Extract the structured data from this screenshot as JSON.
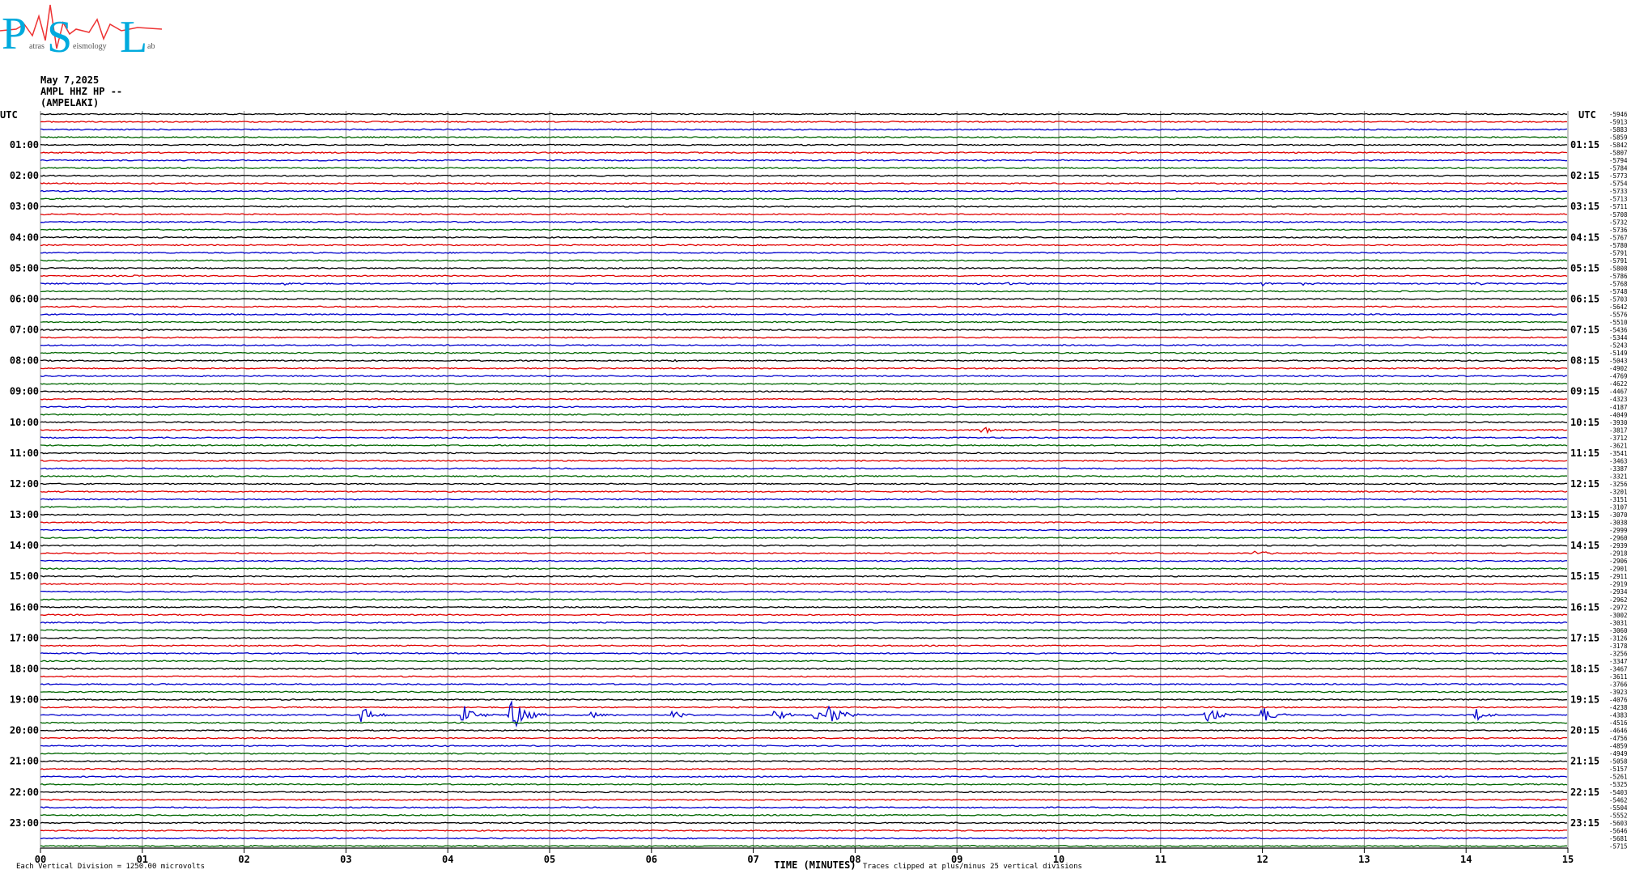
{
  "logo": {
    "letters": [
      "P",
      "S",
      "L"
    ],
    "words": [
      "atras",
      "eismology",
      "ab"
    ]
  },
  "header": {
    "date": "May 7,2025",
    "station": "AMPL HHZ HP --",
    "name": "(AMPELAKI)"
  },
  "footer": {
    "scale_note": "Each Vertical Division = 1250.00 microvolts",
    "xlabel": "TIME (MINUTES)",
    "clip_note": "Traces clipped at plus/minus 25 vertical divisions"
  },
  "colors": {
    "trace_cycle": [
      "#000000",
      "#e00000",
      "#0000cc",
      "#006600"
    ],
    "gridline": "#888888",
    "logo_text": "#00aadd",
    "logo_wave": "#ee3333"
  },
  "chart_data": {
    "type": "line",
    "title": "May 7,2025 AMPL HHZ HP -- (AMPELAKI)",
    "xlabel": "TIME (MINUTES)",
    "xlim": [
      0,
      15
    ],
    "x_ticks": [
      "00",
      "01",
      "02",
      "03",
      "04",
      "05",
      "06",
      "07",
      "08",
      "09",
      "10",
      "11",
      "12",
      "13",
      "14",
      "15"
    ],
    "left_axis_title": "UTC",
    "right_axis_title": "UTC",
    "left_labels": [
      "01:00",
      "02:00",
      "03:00",
      "04:00",
      "05:00",
      "06:00",
      "07:00",
      "08:00",
      "09:00",
      "10:00",
      "11:00",
      "12:00",
      "13:00",
      "14:00",
      "15:00",
      "16:00",
      "17:00",
      "18:00",
      "19:00",
      "20:00",
      "21:00",
      "22:00",
      "23:00"
    ],
    "right_labels": [
      "01:15",
      "02:15",
      "03:15",
      "04:15",
      "05:15",
      "06:15",
      "07:15",
      "08:15",
      "09:15",
      "10:15",
      "11:15",
      "12:15",
      "13:15",
      "14:15",
      "15:15",
      "16:15",
      "17:15",
      "18:15",
      "19:15",
      "20:15",
      "21:15",
      "22:15",
      "23:15"
    ],
    "trace_offsets": [
      "-5946",
      "-5913",
      "-5883",
      "-5859",
      "-5842",
      "-5807",
      "-5794",
      "-5784",
      "-5773",
      "-5754",
      "-5733",
      "-5713",
      "-5711",
      "-5708",
      "-5732",
      "-5736",
      "-5767",
      "-5780",
      "-5791",
      "-5791",
      "-5808",
      "-5786",
      "-5768",
      "-5748",
      "-5703",
      "-5642",
      "-5576",
      "-5510",
      "-5436",
      "-5344",
      "-5243",
      "-5149",
      "-5043",
      "-4902",
      "-4769",
      "-4622",
      "-4467",
      "-4323",
      "-4187",
      "-4049",
      "-3930",
      "-3817",
      "-3712",
      "-3621",
      "-3541",
      "-3463",
      "-3387",
      "-3321",
      "-3256",
      "-3201",
      "-3151",
      "-3107",
      "-3070",
      "-3038",
      "-2999",
      "-2960",
      "-2939",
      "-2918",
      "-2906",
      "-2901",
      "-2911",
      "-2919",
      "-2934",
      "-2962",
      "-2972",
      "-3002",
      "-3031",
      "-3060",
      "-3126",
      "-3178",
      "-3256",
      "-3347",
      "-3467",
      "-3611",
      "-3766",
      "-3923",
      "-4076",
      "-4238",
      "-4383",
      "-4516",
      "-4646",
      "-4756",
      "-4859",
      "-4949",
      "-5058",
      "-5157",
      "-5261",
      "-5325",
      "-5403",
      "-5462",
      "-5504",
      "-5552",
      "-5603",
      "-5646",
      "-5681",
      "-5715"
    ],
    "series_count": 96,
    "events": [
      {
        "trace": 21,
        "minute": 0.9,
        "amp": 0.5
      },
      {
        "trace": 22,
        "minute": 2.4,
        "amp": 0.8
      },
      {
        "trace": 22,
        "minute": 9.2,
        "amp": 0.7
      },
      {
        "trace": 22,
        "minute": 9.5,
        "amp": 0.9
      },
      {
        "trace": 22,
        "minute": 12.0,
        "amp": 1.2
      },
      {
        "trace": 22,
        "minute": 12.4,
        "amp": 0.7
      },
      {
        "trace": 22,
        "minute": 14.1,
        "amp": 1.0
      },
      {
        "trace": 28,
        "minute": 0.95,
        "amp": 0.8
      },
      {
        "trace": 32,
        "minute": 6.2,
        "amp": 0.5
      },
      {
        "trace": 41,
        "minute": 9.25,
        "amp": 2.2
      },
      {
        "trace": 40,
        "minute": 12.8,
        "amp": 0.6
      },
      {
        "trace": 42,
        "minute": 7.0,
        "amp": 0.8
      },
      {
        "trace": 45,
        "minute": 6.2,
        "amp": 0.5
      },
      {
        "trace": 56,
        "minute": 3.3,
        "amp": 0.4
      },
      {
        "trace": 57,
        "minute": 11.9,
        "amp": 1.6
      },
      {
        "trace": 78,
        "minute": 3.15,
        "amp": 5.0
      },
      {
        "trace": 78,
        "minute": 4.15,
        "amp": 6.0
      },
      {
        "trace": 78,
        "minute": 4.62,
        "amp": 11.0
      },
      {
        "trace": 78,
        "minute": 5.4,
        "amp": 2.0
      },
      {
        "trace": 78,
        "minute": 6.2,
        "amp": 2.2
      },
      {
        "trace": 78,
        "minute": 7.2,
        "amp": 3.5
      },
      {
        "trace": 78,
        "minute": 7.6,
        "amp": 3.5
      },
      {
        "trace": 78,
        "minute": 7.75,
        "amp": 6.5
      },
      {
        "trace": 78,
        "minute": 11.45,
        "amp": 5.0
      },
      {
        "trace": 78,
        "minute": 12.0,
        "amp": 4.5
      },
      {
        "trace": 78,
        "minute": 14.1,
        "amp": 3.5
      }
    ]
  }
}
